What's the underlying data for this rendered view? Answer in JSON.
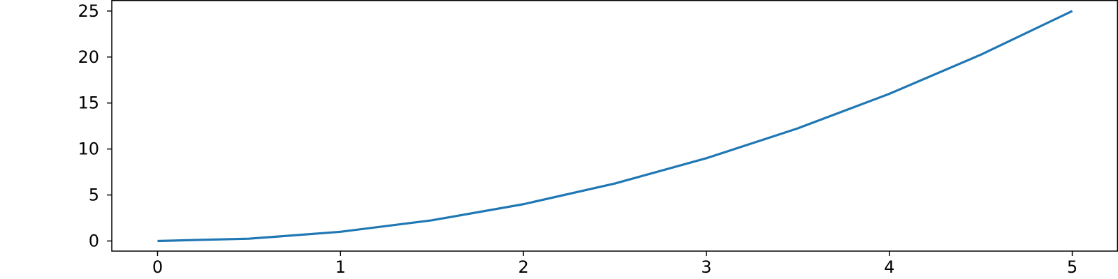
{
  "chart_data": {
    "type": "line",
    "title": "",
    "xlabel": "",
    "ylabel": "",
    "xlim": [
      -0.25,
      5.25
    ],
    "ylim": [
      -1.1,
      26.2
    ],
    "x_ticks": [
      0,
      1,
      2,
      3,
      4,
      5
    ],
    "y_ticks": [
      0,
      5,
      10,
      15,
      20,
      25
    ],
    "x_tick_labels": [
      "0",
      "1",
      "2",
      "3",
      "4",
      "5"
    ],
    "y_tick_labels": [
      "0",
      "5",
      "10",
      "15",
      "20",
      "25"
    ],
    "grid": false,
    "legend": "none",
    "series": [
      {
        "color": "#1f77b4",
        "x": [
          0,
          0.5,
          1,
          1.5,
          2,
          2.5,
          3,
          3.5,
          4,
          4.5,
          5
        ],
        "y": [
          0,
          0.25,
          1,
          2.25,
          4,
          6.25,
          9,
          12.25,
          16,
          20.25,
          25
        ]
      }
    ]
  }
}
